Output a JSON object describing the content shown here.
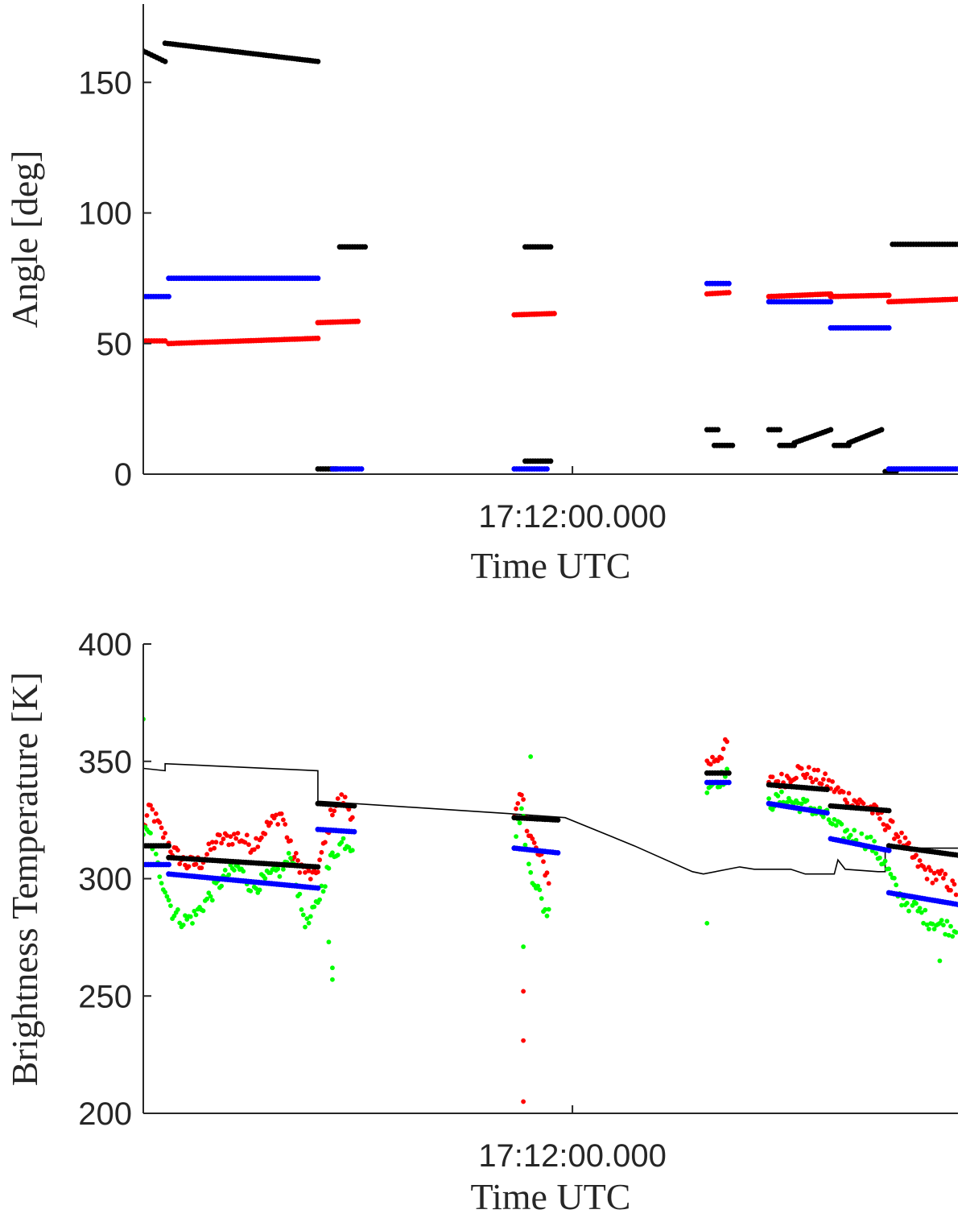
{
  "colors": {
    "black": "#000000",
    "blue": "#0000ff",
    "red": "#ff0000",
    "green": "#00ff00",
    "axis": "#262626"
  },
  "chart_data": [
    {
      "type": "scatter",
      "xlabel": "Time UTC",
      "ylabel": "Angle [deg]",
      "xticklabels": [
        "17:12:00.000"
      ],
      "x_unit": "seconds relative to 17:12:00",
      "xlim": [
        -118,
        106
      ],
      "ylim": [
        0,
        180
      ],
      "yticks": [
        0,
        50,
        100,
        150
      ],
      "grid": false,
      "series": [
        {
          "color_key": "black",
          "segments": [
            {
              "x": [
                -118,
                -112
              ],
              "y": [
                162,
                158
              ]
            },
            {
              "x": [
                -112,
                -70
              ],
              "y": [
                165,
                158
              ]
            },
            {
              "x": [
                -70,
                -65
              ],
              "y": [
                2,
                2
              ]
            },
            {
              "x": [
                -64,
                -57
              ],
              "y": [
                87,
                87
              ]
            },
            {
              "x": [
                -13,
                -6
              ],
              "y": [
                87,
                87
              ]
            },
            {
              "x": [
                -13,
                -6
              ],
              "y": [
                5,
                5
              ]
            },
            {
              "x": [
                37,
                40
              ],
              "y": [
                17,
                17
              ]
            },
            {
              "x": [
                39,
                44
              ],
              "y": [
                11,
                11
              ]
            },
            {
              "x": [
                54,
                57
              ],
              "y": [
                17,
                17
              ]
            },
            {
              "x": [
                57,
                61
              ],
              "y": [
                11,
                11
              ]
            },
            {
              "x": [
                61,
                71
              ],
              "y": [
                12,
                17
              ]
            },
            {
              "x": [
                72,
                76
              ],
              "y": [
                11,
                11
              ]
            },
            {
              "x": [
                76,
                85
              ],
              "y": [
                12,
                17
              ]
            },
            {
              "x": [
                86,
                89
              ],
              "y": [
                1,
                1
              ]
            },
            {
              "x": [
                88,
                106
              ],
              "y": [
                88,
                88
              ]
            }
          ]
        },
        {
          "color_key": "blue",
          "segments": [
            {
              "x": [
                -118,
                -111
              ],
              "y": [
                68,
                68
              ]
            },
            {
              "x": [
                -111,
                -70
              ],
              "y": [
                75,
                75
              ]
            },
            {
              "x": [
                -66,
                -58
              ],
              "y": [
                2,
                2
              ]
            },
            {
              "x": [
                -16,
                -7
              ],
              "y": [
                2,
                2
              ]
            },
            {
              "x": [
                37,
                43
              ],
              "y": [
                73,
                73
              ]
            },
            {
              "x": [
                54,
                71
              ],
              "y": [
                66,
                66
              ]
            },
            {
              "x": [
                71,
                87
              ],
              "y": [
                56,
                56
              ]
            },
            {
              "x": [
                87,
                106
              ],
              "y": [
                2,
                2
              ]
            }
          ]
        },
        {
          "color_key": "red",
          "segments": [
            {
              "x": [
                -118,
                -112
              ],
              "y": [
                51,
                51
              ]
            },
            {
              "x": [
                -111,
                -70
              ],
              "y": [
                50,
                52
              ]
            },
            {
              "x": [
                -70,
                -59
              ],
              "y": [
                58,
                58.5
              ]
            },
            {
              "x": [
                -16,
                -5
              ],
              "y": [
                61,
                61.5
              ]
            },
            {
              "x": [
                37,
                43
              ],
              "y": [
                69,
                69.5
              ]
            },
            {
              "x": [
                54,
                71
              ],
              "y": [
                68,
                69
              ]
            },
            {
              "x": [
                71,
                87
              ],
              "y": [
                68,
                68.5
              ]
            },
            {
              "x": [
                87,
                106
              ],
              "y": [
                66,
                67
              ]
            }
          ]
        }
      ]
    },
    {
      "type": "scatter",
      "xlabel": "Time UTC",
      "ylabel": "Brightness Temperature [K]",
      "xticklabels": [
        "17:12:00.000"
      ],
      "x_unit": "seconds relative to 17:12:00",
      "xlim": [
        -118,
        106
      ],
      "ylim": [
        200,
        400
      ],
      "yticks": [
        200,
        250,
        300,
        350,
        400
      ],
      "grid": false,
      "line": {
        "color_key": "black",
        "x": [
          -118,
          -112,
          -112,
          -70,
          -70,
          -20,
          -2,
          17,
          33,
          36,
          46,
          50,
          60,
          64,
          72,
          73,
          75,
          84,
          86,
          86,
          106
        ],
        "y": [
          347,
          346,
          349,
          346,
          333,
          328,
          326,
          314,
          303,
          302,
          305,
          304,
          304,
          302,
          302,
          308,
          304,
          303,
          303,
          313,
          313
        ]
      },
      "series": [
        {
          "color_key": "black",
          "segments": [
            {
              "x": [
                -118,
                -111
              ],
              "y": [
                314,
                314
              ]
            },
            {
              "x": [
                -111,
                -70
              ],
              "y": [
                309,
                305
              ]
            },
            {
              "x": [
                -70,
                -60
              ],
              "y": [
                332,
                331
              ]
            },
            {
              "x": [
                -16,
                -4
              ],
              "y": [
                326,
                325
              ]
            },
            {
              "x": [
                37,
                43
              ],
              "y": [
                345,
                345
              ]
            },
            {
              "x": [
                54,
                70
              ],
              "y": [
                340,
                338
              ]
            },
            {
              "x": [
                71,
                87
              ],
              "y": [
                331,
                329
              ]
            },
            {
              "x": [
                87,
                106
              ],
              "y": [
                314,
                310
              ]
            }
          ]
        },
        {
          "color_key": "blue",
          "segments": [
            {
              "x": [
                -118,
                -111
              ],
              "y": [
                306,
                306
              ]
            },
            {
              "x": [
                -111,
                -70
              ],
              "y": [
                302,
                296
              ]
            },
            {
              "x": [
                -70,
                -60
              ],
              "y": [
                321,
                320
              ]
            },
            {
              "x": [
                -16,
                -4
              ],
              "y": [
                313,
                311
              ]
            },
            {
              "x": [
                37,
                43
              ],
              "y": [
                341,
                341
              ]
            },
            {
              "x": [
                54,
                70
              ],
              "y": [
                332,
                328
              ]
            },
            {
              "x": [
                71,
                87
              ],
              "y": [
                317,
                312
              ]
            },
            {
              "x": [
                87,
                106
              ],
              "y": [
                294,
                289
              ]
            }
          ]
        },
        {
          "color_key": "red",
          "profile": [
            {
              "x": -118,
              "y": 322
            },
            {
              "x": -116,
              "y": 330
            },
            {
              "x": -113,
              "y": 320
            },
            {
              "x": -110,
              "y": 312
            },
            {
              "x": -106,
              "y": 306
            },
            {
              "x": -102,
              "y": 307
            },
            {
              "x": -98,
              "y": 316
            },
            {
              "x": -92,
              "y": 318
            },
            {
              "x": -88,
              "y": 314
            },
            {
              "x": -84,
              "y": 322
            },
            {
              "x": -80,
              "y": 328
            },
            {
              "x": -77,
              "y": 310
            },
            {
              "x": -74,
              "y": 304
            },
            {
              "x": -71,
              "y": 300
            },
            {
              "x": -68,
              "y": 315
            },
            {
              "x": -66,
              "y": 330
            },
            {
              "x": -63,
              "y": 334
            },
            {
              "x": -60,
              "y": 326
            },
            {
              "x": -16,
              "y": 325
            },
            {
              "x": -14,
              "y": 335
            },
            {
              "x": -12,
              "y": 320
            },
            {
              "x": -10,
              "y": 312
            },
            {
              "x": -8,
              "y": 306
            },
            {
              "x": -6,
              "y": 298
            },
            {
              "x": 37,
              "y": 349
            },
            {
              "x": 40,
              "y": 352
            },
            {
              "x": 43,
              "y": 358
            },
            {
              "x": 54,
              "y": 341
            },
            {
              "x": 58,
              "y": 342
            },
            {
              "x": 62,
              "y": 346
            },
            {
              "x": 66,
              "y": 344
            },
            {
              "x": 70,
              "y": 341
            },
            {
              "x": 74,
              "y": 336
            },
            {
              "x": 78,
              "y": 333
            },
            {
              "x": 82,
              "y": 330
            },
            {
              "x": 86,
              "y": 324
            },
            {
              "x": 90,
              "y": 318
            },
            {
              "x": 94,
              "y": 308
            },
            {
              "x": 98,
              "y": 302
            },
            {
              "x": 102,
              "y": 300
            },
            {
              "x": 106,
              "y": 294
            }
          ],
          "outliers": [
            {
              "x": -13.5,
              "y": 252
            },
            {
              "x": -13.5,
              "y": 231
            },
            {
              "x": -13.5,
              "y": 205
            }
          ]
        },
        {
          "color_key": "green",
          "profile": [
            {
              "x": -118,
              "y": 320
            },
            {
              "x": -116,
              "y": 318
            },
            {
              "x": -114,
              "y": 305
            },
            {
              "x": -112,
              "y": 296
            },
            {
              "x": -110,
              "y": 286
            },
            {
              "x": -107,
              "y": 282
            },
            {
              "x": -104,
              "y": 284
            },
            {
              "x": -100,
              "y": 292
            },
            {
              "x": -96,
              "y": 300
            },
            {
              "x": -92,
              "y": 305
            },
            {
              "x": -88,
              "y": 296
            },
            {
              "x": -84,
              "y": 300
            },
            {
              "x": -80,
              "y": 304
            },
            {
              "x": -77,
              "y": 310
            },
            {
              "x": -75,
              "y": 290
            },
            {
              "x": -73,
              "y": 280
            },
            {
              "x": -71,
              "y": 286
            },
            {
              "x": -68,
              "y": 300
            },
            {
              "x": -66,
              "y": 310
            },
            {
              "x": -63,
              "y": 316
            },
            {
              "x": -60,
              "y": 314
            },
            {
              "x": -16,
              "y": 316
            },
            {
              "x": -14,
              "y": 330
            },
            {
              "x": -12,
              "y": 305
            },
            {
              "x": -10,
              "y": 298
            },
            {
              "x": -8,
              "y": 288
            },
            {
              "x": -6,
              "y": 284
            },
            {
              "x": 37,
              "y": 340
            },
            {
              "x": 40,
              "y": 342
            },
            {
              "x": 43,
              "y": 344
            },
            {
              "x": 54,
              "y": 332
            },
            {
              "x": 58,
              "y": 334
            },
            {
              "x": 62,
              "y": 332
            },
            {
              "x": 66,
              "y": 330
            },
            {
              "x": 70,
              "y": 326
            },
            {
              "x": 74,
              "y": 320
            },
            {
              "x": 78,
              "y": 318
            },
            {
              "x": 82,
              "y": 315
            },
            {
              "x": 86,
              "y": 306
            },
            {
              "x": 90,
              "y": 292
            },
            {
              "x": 94,
              "y": 288
            },
            {
              "x": 98,
              "y": 282
            },
            {
              "x": 102,
              "y": 280
            },
            {
              "x": 106,
              "y": 278
            }
          ],
          "outliers": [
            {
              "x": -118,
              "y": 368
            },
            {
              "x": -67,
              "y": 273
            },
            {
              "x": -66,
              "y": 262
            },
            {
              "x": -66,
              "y": 257
            },
            {
              "x": -13.5,
              "y": 271
            },
            {
              "x": -11.5,
              "y": 352
            },
            {
              "x": 37,
              "y": 281
            },
            {
              "x": 101,
              "y": 265
            }
          ]
        }
      ]
    }
  ]
}
